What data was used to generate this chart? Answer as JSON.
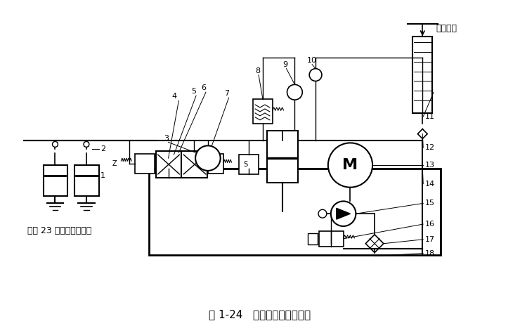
{
  "title": "图 1-24   改进后的液压原理图",
  "caption_top": "压缩空气",
  "note": "（共 23 个压料液压缸）",
  "bg_color": "#ffffff",
  "line_color": "#000000"
}
